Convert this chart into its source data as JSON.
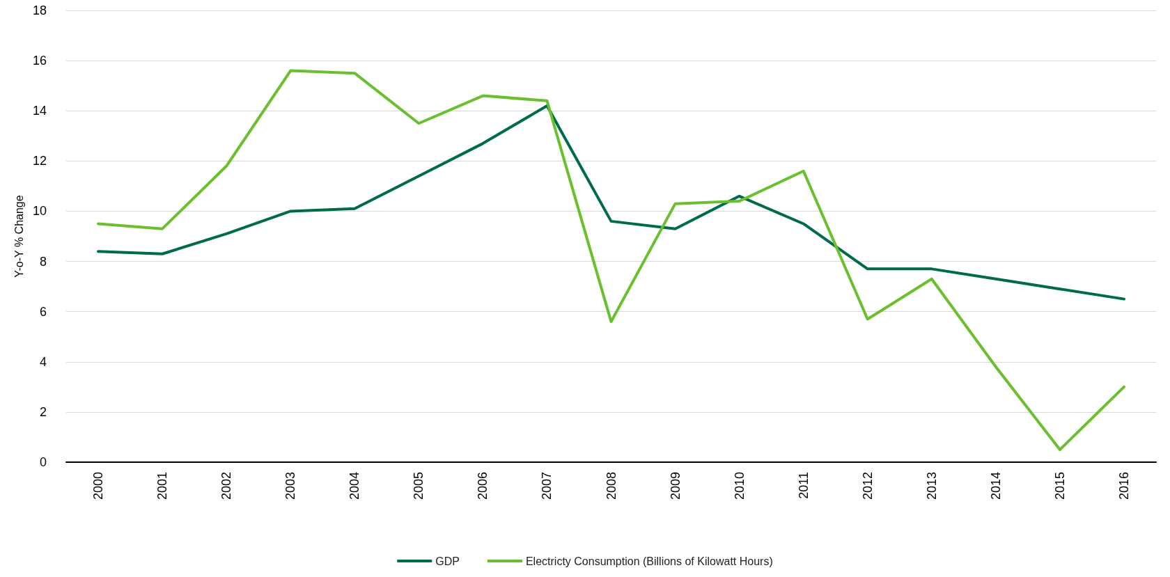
{
  "chart_data": {
    "type": "line",
    "ylabel": "Y-o-Y % Change",
    "categories": [
      "2000",
      "2001",
      "2002",
      "2003",
      "2004",
      "2005",
      "2006",
      "2007",
      "2008",
      "2009",
      "2010",
      "2011",
      "2012",
      "2013",
      "2014",
      "2015",
      "2016"
    ],
    "series": [
      {
        "name": "GDP",
        "color": "#006b4a",
        "values": [
          8.4,
          8.3,
          9.1,
          10.0,
          10.1,
          11.4,
          12.7,
          14.2,
          9.6,
          9.3,
          10.6,
          9.5,
          7.7,
          7.7,
          7.3,
          6.9,
          6.5
        ]
      },
      {
        "name": "Electricty Consumption (Billions of Kilowatt Hours)",
        "color": "#6abf2e",
        "values": [
          9.5,
          9.3,
          11.8,
          15.6,
          15.5,
          13.5,
          14.6,
          14.4,
          5.6,
          10.3,
          10.4,
          11.6,
          5.7,
          7.3,
          3.8,
          0.5,
          3.0
        ]
      }
    ],
    "ylim": [
      0,
      18
    ],
    "yticks": [
      0,
      2,
      4,
      6,
      8,
      10,
      12,
      14,
      16,
      18
    ],
    "grid": "y",
    "legend": "bottom",
    "marker": "none",
    "line_style": "solid"
  }
}
